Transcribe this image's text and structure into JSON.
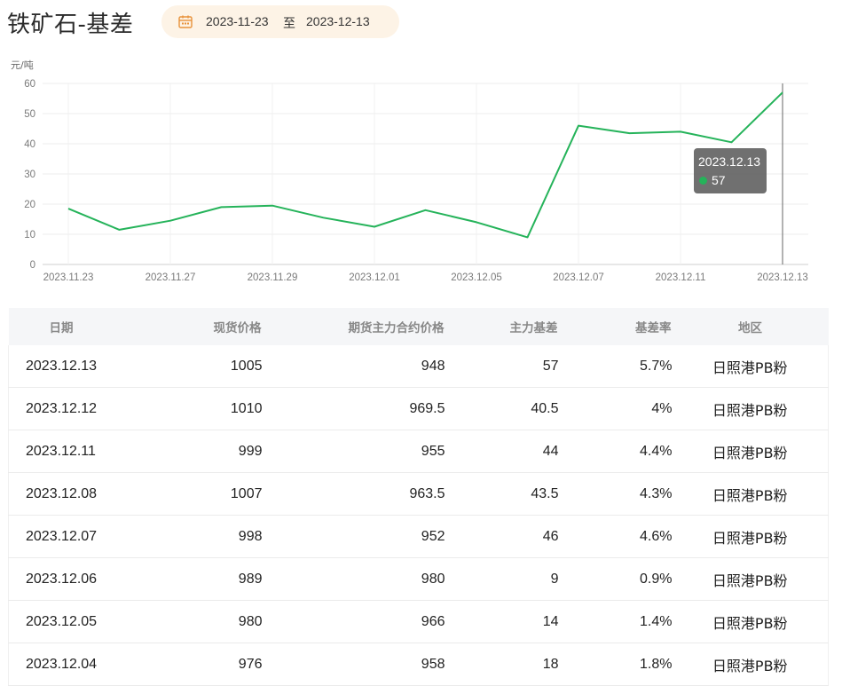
{
  "header": {
    "title": "铁矿石-基差",
    "date_start": "2023-11-23",
    "date_separator": "至",
    "date_end": "2023-12-13"
  },
  "chart_data": {
    "type": "line",
    "unit_label": "元/吨",
    "x": [
      "2023.11.23",
      "2023.11.24",
      "2023.11.27",
      "2023.11.28",
      "2023.11.29",
      "2023.11.30",
      "2023.12.01",
      "2023.12.04",
      "2023.12.05",
      "2023.12.06",
      "2023.12.07",
      "2023.12.08",
      "2023.12.11",
      "2023.12.12",
      "2023.12.13"
    ],
    "x_tick_labels": [
      "2023.11.23",
      "2023.11.27",
      "2023.11.29",
      "2023.12.01",
      "2023.12.05",
      "2023.12.07",
      "2023.12.11",
      "2023.12.13"
    ],
    "series": [
      {
        "values": [
          18.5,
          11.5,
          14.5,
          19,
          19.5,
          15.5,
          12.5,
          18,
          14,
          9,
          46,
          43.5,
          44,
          40.5,
          57
        ]
      }
    ],
    "ylim": [
      0,
      60
    ],
    "y_ticks": [
      0,
      10,
      20,
      30,
      40,
      50,
      60
    ],
    "grid": true,
    "line_color": "#25b35a",
    "tooltip": {
      "date": "2023.12.13",
      "value": "57"
    }
  },
  "table": {
    "headers": [
      "日期",
      "现货价格",
      "期货主力合约价格",
      "主力基差",
      "基差率",
      "地区"
    ],
    "rows": [
      [
        "2023.12.13",
        "1005",
        "948",
        "57",
        "5.7%",
        "日照港PB粉"
      ],
      [
        "2023.12.12",
        "1010",
        "969.5",
        "40.5",
        "4%",
        "日照港PB粉"
      ],
      [
        "2023.12.11",
        "999",
        "955",
        "44",
        "4.4%",
        "日照港PB粉"
      ],
      [
        "2023.12.08",
        "1007",
        "963.5",
        "43.5",
        "4.3%",
        "日照港PB粉"
      ],
      [
        "2023.12.07",
        "998",
        "952",
        "46",
        "4.6%",
        "日照港PB粉"
      ],
      [
        "2023.12.06",
        "989",
        "980",
        "9",
        "0.9%",
        "日照港PB粉"
      ],
      [
        "2023.12.05",
        "980",
        "966",
        "14",
        "1.4%",
        "日照港PB粉"
      ],
      [
        "2023.12.04",
        "976",
        "958",
        "18",
        "1.8%",
        "日照港PB粉"
      ]
    ]
  },
  "colors": {
    "accent_red": "#e2473e",
    "line_green": "#25b35a",
    "date_pill_bg": "#fdf3e6",
    "calendar_icon": "#e8923a"
  },
  "icons": {
    "date_picker": "calendar-icon"
  }
}
